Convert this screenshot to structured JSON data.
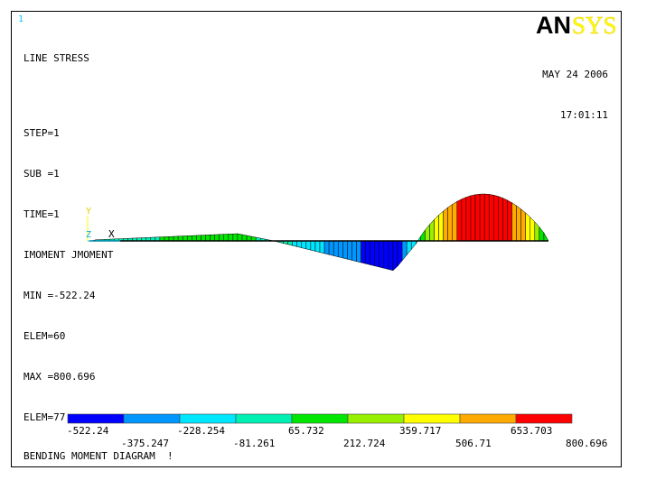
{
  "window_number": "1",
  "logo": {
    "text_black": "AN",
    "text_yellow": "SYS"
  },
  "plot_info": {
    "title": "LINE STRESS",
    "lines": [
      "STEP=1",
      "SUB =1",
      "TIME=1",
      "IMOMENT JMOMENT",
      "MIN =-522.24",
      "ELEM=60",
      "MAX =800.696",
      "ELEM=77"
    ]
  },
  "date": "MAY 24 2006",
  "time": "17:01:11",
  "triad": {
    "y_label": "Y",
    "z_label": "Z",
    "x_label": "X"
  },
  "legend": {
    "colors": [
      "#0000ff",
      "#0096ff",
      "#00e6ff",
      "#00f0b4",
      "#00e600",
      "#96f000",
      "#ffff00",
      "#ffaa00",
      "#ff0000"
    ],
    "values": [
      "-522.24",
      "-375.247",
      "-228.254",
      "-81.261",
      "65.732",
      "212.724",
      "359.717",
      "506.71",
      "653.703",
      "800.696"
    ]
  },
  "caption": "BENDING MOMENT DIAGRAM  !",
  "colors": {
    "triad_yellow": "#ffff00",
    "triad_cyan": "#00c8ff",
    "axis": "#000000"
  }
}
